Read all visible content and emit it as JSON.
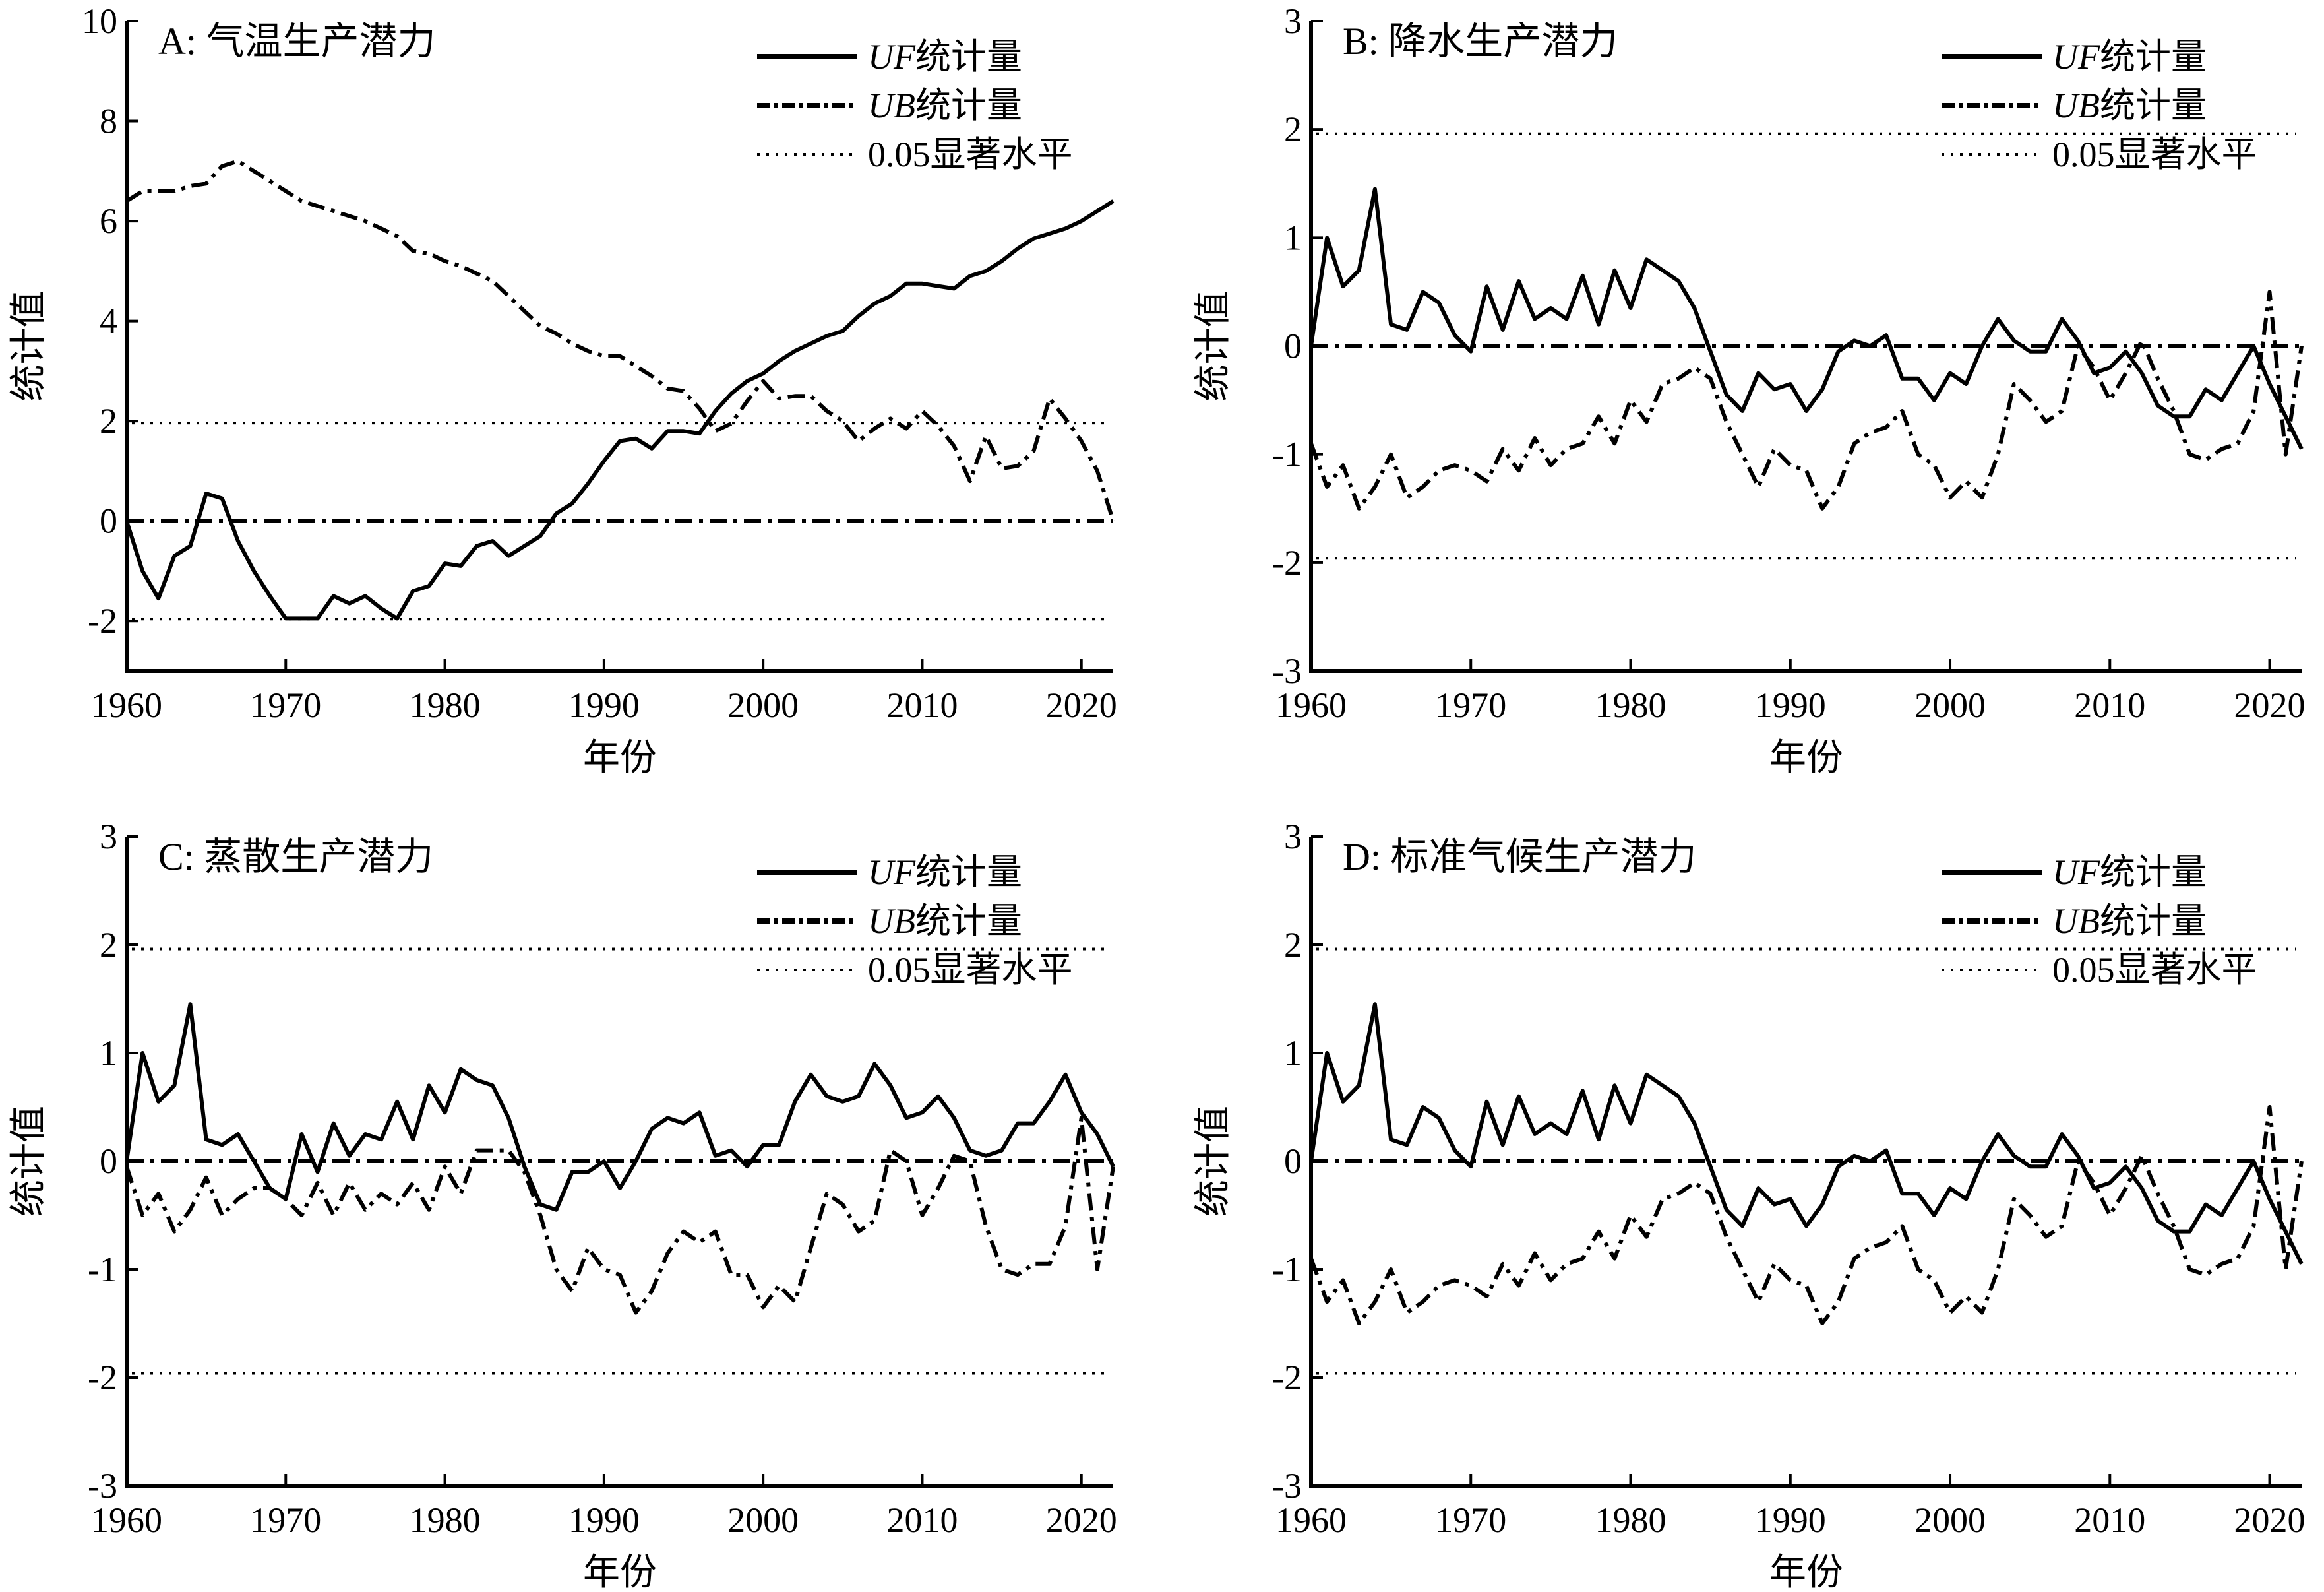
{
  "chart_data": [
    {
      "type": "line",
      "title": "A: 气温生产潜力",
      "xlabel": "年份",
      "ylabel": "统计值",
      "xlim": [
        1960,
        2022
      ],
      "ylim": [
        -3,
        10
      ],
      "xticks": [
        1960,
        1970,
        1980,
        1990,
        2000,
        2010,
        2020
      ],
      "yticks": [
        -2,
        0,
        2,
        4,
        6,
        8,
        10
      ],
      "significance": [
        1.96,
        -1.96
      ],
      "reference": 0,
      "grid": false,
      "legend": [
        "UF统计量",
        "UB统计量",
        "0.05显著水平"
      ],
      "legend_placement": "top-right",
      "x_start": 1960,
      "series": [
        {
          "name": "UF统计量",
          "style": "solid",
          "values": [
            0,
            -1.0,
            -1.55,
            -0.7,
            -0.5,
            0.55,
            0.45,
            -0.4,
            -1.0,
            -1.5,
            -1.95,
            -1.95,
            -1.95,
            -1.5,
            -1.65,
            -1.5,
            -1.75,
            -1.95,
            -1.4,
            -1.3,
            -0.85,
            -0.9,
            -0.5,
            -0.4,
            -0.7,
            -0.5,
            -0.3,
            0.15,
            0.35,
            0.75,
            1.2,
            1.6,
            1.65,
            1.45,
            1.8,
            1.8,
            1.75,
            2.2,
            2.55,
            2.8,
            2.95,
            3.2,
            3.4,
            3.55,
            3.7,
            3.8,
            4.1,
            4.35,
            4.5,
            4.75,
            4.75,
            4.7,
            4.65,
            4.9,
            5.0,
            5.2,
            5.45,
            5.65,
            5.75,
            5.85,
            6.0,
            6.2,
            6.4
          ]
        },
        {
          "name": "UB统计量",
          "style": "dashdot",
          "values": [
            6.4,
            6.6,
            6.6,
            6.6,
            6.7,
            6.75,
            7.1,
            7.2,
            7.0,
            6.8,
            6.6,
            6.4,
            6.3,
            6.2,
            6.1,
            6.0,
            5.85,
            5.7,
            5.4,
            5.35,
            5.2,
            5.1,
            4.95,
            4.8,
            4.5,
            4.2,
            3.9,
            3.75,
            3.55,
            3.4,
            3.3,
            3.3,
            3.1,
            2.9,
            2.65,
            2.6,
            2.25,
            1.8,
            1.95,
            2.4,
            2.8,
            2.45,
            2.5,
            2.5,
            2.2,
            2.0,
            1.6,
            1.85,
            2.05,
            1.85,
            2.2,
            1.9,
            1.5,
            0.8,
            1.7,
            1.05,
            1.1,
            1.4,
            2.45,
            2.05,
            1.6,
            1.0,
            0
          ]
        }
      ]
    },
    {
      "type": "line",
      "title": "B: 降水生产潜力",
      "xlabel": "年份",
      "ylabel": "统计值",
      "xlim": [
        1960,
        2022
      ],
      "ylim": [
        -3,
        3
      ],
      "xticks": [
        1960,
        1970,
        1980,
        1990,
        2000,
        2010,
        2020
      ],
      "yticks": [
        -3,
        -2,
        -1,
        0,
        1,
        2,
        3
      ],
      "significance": [
        1.96,
        -1.96
      ],
      "reference": 0,
      "grid": false,
      "legend": [
        "UF统计量",
        "UB统计量",
        "0.05显著水平"
      ],
      "legend_placement": "top-right",
      "x_start": 1960,
      "series": [
        {
          "name": "UF统计量",
          "style": "solid",
          "values": [
            0,
            1.0,
            0.55,
            0.7,
            1.45,
            0.2,
            0.15,
            0.5,
            0.4,
            0.1,
            -0.05,
            0.55,
            0.15,
            0.6,
            0.25,
            0.35,
            0.25,
            0.65,
            0.2,
            0.7,
            0.35,
            0.8,
            0.7,
            0.6,
            0.35,
            -0.05,
            -0.45,
            -0.6,
            -0.25,
            -0.4,
            -0.35,
            -0.6,
            -0.4,
            -0.05,
            0.05,
            0.0,
            0.1,
            -0.3,
            -0.3,
            -0.5,
            -0.25,
            -0.35,
            0.0,
            0.25,
            0.05,
            -0.05,
            -0.05,
            0.25,
            0.05,
            -0.25,
            -0.2,
            -0.05,
            -0.25,
            -0.55,
            -0.65,
            -0.65,
            -0.4,
            -0.5,
            -0.25,
            0.0,
            -0.35,
            -0.65,
            -0.95
          ]
        },
        {
          "name": "UB统计量",
          "style": "dashdot",
          "values": [
            -0.9,
            -1.3,
            -1.1,
            -1.5,
            -1.3,
            -1.0,
            -1.4,
            -1.3,
            -1.15,
            -1.1,
            -1.15,
            -1.25,
            -0.95,
            -1.15,
            -0.85,
            -1.1,
            -0.95,
            -0.9,
            -0.65,
            -0.9,
            -0.5,
            -0.7,
            -0.35,
            -0.3,
            -0.2,
            -0.3,
            -0.7,
            -1.0,
            -1.3,
            -0.95,
            -1.1,
            -1.15,
            -1.5,
            -1.3,
            -0.9,
            -0.8,
            -0.75,
            -0.6,
            -1.0,
            -1.1,
            -1.4,
            -1.25,
            -1.4,
            -1.0,
            -0.35,
            -0.5,
            -0.7,
            -0.6,
            0.0,
            -0.2,
            -0.5,
            -0.25,
            0.05,
            -0.3,
            -0.6,
            -1.0,
            -1.05,
            -0.95,
            -0.9,
            -0.6,
            0.5,
            -1.0,
            0.0
          ]
        }
      ]
    },
    {
      "type": "line",
      "title": "C: 蒸散生产潜力",
      "xlabel": "年份",
      "ylabel": "统计值",
      "xlim": [
        1960,
        2022
      ],
      "ylim": [
        -3,
        3
      ],
      "xticks": [
        1960,
        1970,
        1980,
        1990,
        2000,
        2010,
        2020
      ],
      "yticks": [
        -3,
        -2,
        -1,
        0,
        1,
        2,
        3
      ],
      "significance": [
        1.96,
        -1.96
      ],
      "reference": 0,
      "grid": false,
      "legend": [
        "UF统计量",
        "UB统计量",
        "0.05显著水平"
      ],
      "legend_placement": "top-right",
      "x_start": 1960,
      "series": [
        {
          "name": "UF统计量",
          "style": "solid",
          "values": [
            0,
            1.0,
            0.55,
            0.7,
            1.45,
            0.2,
            0.15,
            0.25,
            0.0,
            -0.25,
            -0.35,
            0.25,
            -0.1,
            0.35,
            0.05,
            0.25,
            0.2,
            0.55,
            0.2,
            0.7,
            0.45,
            0.85,
            0.75,
            0.7,
            0.4,
            -0.05,
            -0.4,
            -0.45,
            -0.1,
            -0.1,
            0.0,
            -0.25,
            0.0,
            0.3,
            0.4,
            0.35,
            0.45,
            0.05,
            0.1,
            -0.05,
            0.15,
            0.15,
            0.55,
            0.8,
            0.6,
            0.55,
            0.6,
            0.9,
            0.7,
            0.4,
            0.45,
            0.6,
            0.4,
            0.1,
            0.05,
            0.1,
            0.35,
            0.35,
            0.55,
            0.8,
            0.45,
            0.25,
            -0.05
          ]
        },
        {
          "name": "UB统计量",
          "style": "dashdot",
          "values": [
            -0.05,
            -0.5,
            -0.3,
            -0.65,
            -0.45,
            -0.15,
            -0.5,
            -0.35,
            -0.25,
            -0.25,
            -0.35,
            -0.5,
            -0.2,
            -0.5,
            -0.2,
            -0.45,
            -0.3,
            -0.4,
            -0.2,
            -0.45,
            -0.05,
            -0.3,
            0.1,
            0.1,
            0.1,
            -0.1,
            -0.5,
            -1.0,
            -1.2,
            -0.8,
            -1.0,
            -1.05,
            -1.4,
            -1.2,
            -0.85,
            -0.65,
            -0.75,
            -0.65,
            -1.05,
            -1.05,
            -1.35,
            -1.15,
            -1.3,
            -0.8,
            -0.3,
            -0.4,
            -0.65,
            -0.55,
            0.1,
            0.0,
            -0.5,
            -0.25,
            0.05,
            0.0,
            -0.6,
            -1.0,
            -1.05,
            -0.95,
            -0.95,
            -0.6,
            0.4,
            -1.0,
            -0.05
          ]
        }
      ]
    },
    {
      "type": "line",
      "title": "D: 标准气候生产潜力",
      "xlabel": "年份",
      "ylabel": "统计值",
      "xlim": [
        1960,
        2022
      ],
      "ylim": [
        -3,
        3
      ],
      "xticks": [
        1960,
        1970,
        1980,
        1990,
        2000,
        2010,
        2020
      ],
      "yticks": [
        -3,
        -2,
        -1,
        0,
        1,
        2,
        3
      ],
      "significance": [
        1.96,
        -1.96
      ],
      "reference": 0,
      "grid": false,
      "legend": [
        "UF统计量",
        "UB统计量",
        "0.05显著水平"
      ],
      "legend_placement": "top-right",
      "x_start": 1960,
      "series": [
        {
          "name": "UF统计量",
          "style": "solid",
          "values": [
            0,
            1.0,
            0.55,
            0.7,
            1.45,
            0.2,
            0.15,
            0.5,
            0.4,
            0.1,
            -0.05,
            0.55,
            0.15,
            0.6,
            0.25,
            0.35,
            0.25,
            0.65,
            0.2,
            0.7,
            0.35,
            0.8,
            0.7,
            0.6,
            0.35,
            -0.05,
            -0.45,
            -0.6,
            -0.25,
            -0.4,
            -0.35,
            -0.6,
            -0.4,
            -0.05,
            0.05,
            0.0,
            0.1,
            -0.3,
            -0.3,
            -0.5,
            -0.25,
            -0.35,
            0.0,
            0.25,
            0.05,
            -0.05,
            -0.05,
            0.25,
            0.05,
            -0.25,
            -0.2,
            -0.05,
            -0.25,
            -0.55,
            -0.65,
            -0.65,
            -0.4,
            -0.5,
            -0.25,
            0.0,
            -0.35,
            -0.65,
            -0.95
          ]
        },
        {
          "name": "UB统计量",
          "style": "dashdot",
          "values": [
            -0.9,
            -1.3,
            -1.1,
            -1.5,
            -1.3,
            -1.0,
            -1.4,
            -1.3,
            -1.15,
            -1.1,
            -1.15,
            -1.25,
            -0.95,
            -1.15,
            -0.85,
            -1.1,
            -0.95,
            -0.9,
            -0.65,
            -0.9,
            -0.5,
            -0.7,
            -0.35,
            -0.3,
            -0.2,
            -0.3,
            -0.7,
            -1.0,
            -1.3,
            -0.95,
            -1.1,
            -1.15,
            -1.5,
            -1.3,
            -0.9,
            -0.8,
            -0.75,
            -0.6,
            -1.0,
            -1.1,
            -1.4,
            -1.25,
            -1.4,
            -1.0,
            -0.35,
            -0.5,
            -0.7,
            -0.6,
            0.0,
            -0.2,
            -0.5,
            -0.25,
            0.05,
            -0.3,
            -0.6,
            -1.0,
            -1.05,
            -0.95,
            -0.9,
            -0.6,
            0.5,
            -1.0,
            0.0
          ]
        }
      ]
    }
  ]
}
